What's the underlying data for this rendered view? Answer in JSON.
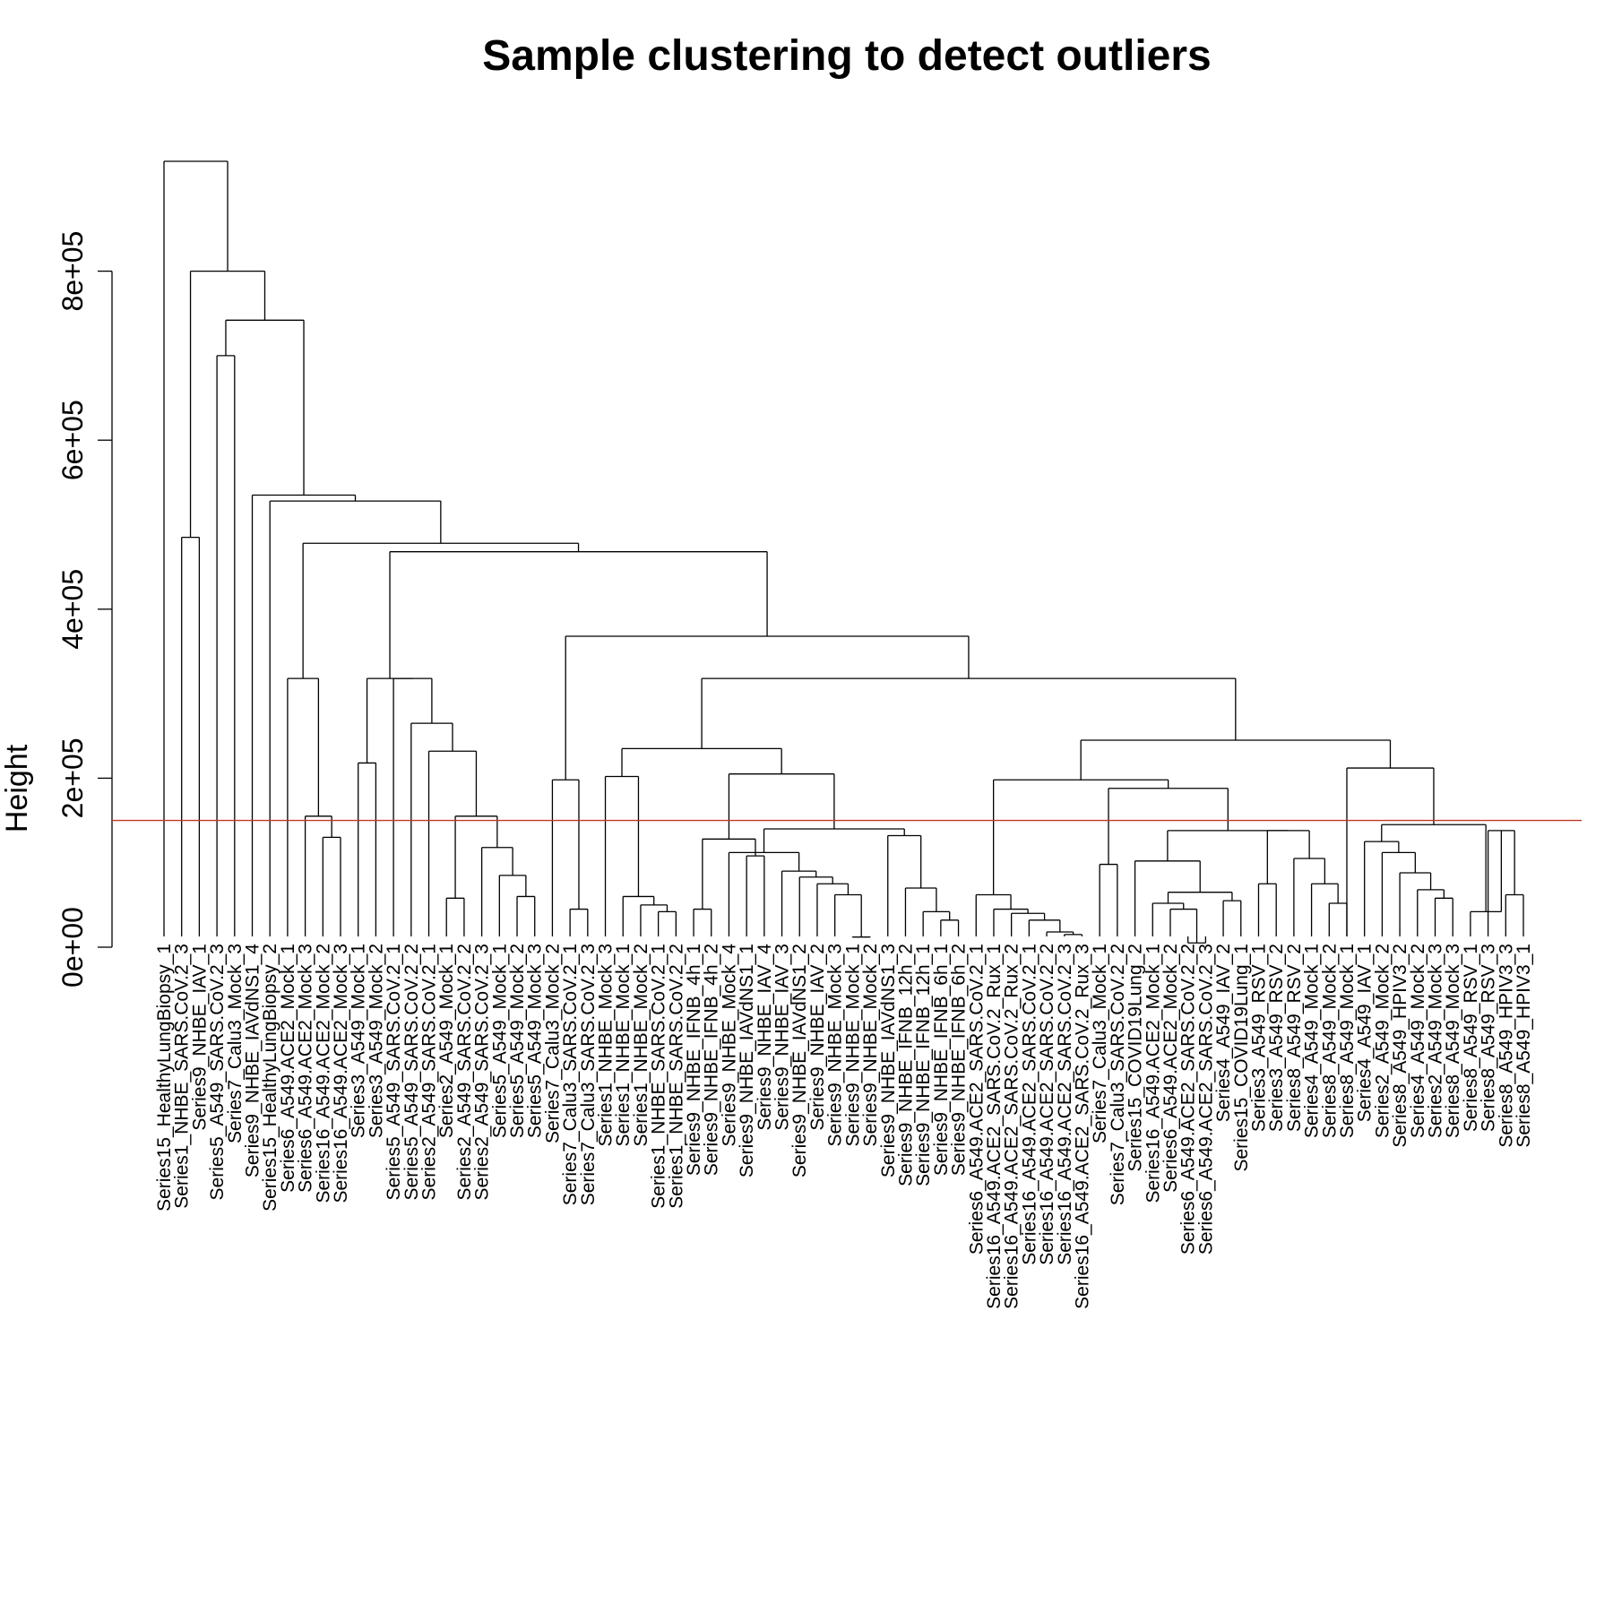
{
  "chart_data": {
    "type": "dendrogram",
    "title": "Sample clustering to detect outliers",
    "ylabel": "Height",
    "xlabel": "",
    "y_ticks": [
      "0e+00",
      "2e+05",
      "4e+05",
      "6e+05",
      "8e+05"
    ],
    "y_tick_values": [
      0,
      200000,
      400000,
      600000,
      800000
    ],
    "ylim": [
      0,
      930000
    ],
    "cut_height": 150000,
    "cut_color": "#c0392b",
    "leaves": [
      "Series15_HealthyLungBiopsy_1",
      "Series1_NHBE_SARS.CoV.2_3",
      "Series9_NHBE_IAV_1",
      "Series5_A549_SARS.CoV.2_3",
      "Series7_Calu3_Mock_3",
      "Series9_NHBE_IAVdNS1_4",
      "Series15_HealthyLungBiopsy_2",
      "Series6_A549.ACE2_Mock_1",
      "Series6_A549.ACE2_Mock_3",
      "Series16_A549.ACE2_Mock_2",
      "Series16_A549.ACE2_Mock_3",
      "Series3_A549_Mock_1",
      "Series3_A549_Mock_2",
      "Series5_A549_SARS.CoV.2_1",
      "Series5_A549_SARS.CoV.2_2",
      "Series2_A549_SARS.CoV.2_1",
      "Series2_A549_Mock_1",
      "Series2_A549_SARS.CoV.2_2",
      "Series2_A549_SARS.CoV.2_3",
      "Series5_A549_Mock_1",
      "Series5_A549_Mock_2",
      "Series5_A549_Mock_3",
      "Series7_Calu3_Mock_2",
      "Series7_Calu3_SARS.CoV.2_1",
      "Series7_Calu3_SARS.CoV.2_3",
      "Series1_NHBE_Mock_3",
      "Series1_NHBE_Mock_1",
      "Series1_NHBE_Mock_2",
      "Series1_NHBE_SARS.CoV.2_1",
      "Series1_NHBE_SARS.CoV.2_2",
      "Series9_NHBE_IFNB_4h_1",
      "Series9_NHBE_IFNB_4h_2",
      "Series9_NHBE_Mock_4",
      "Series9_NHBE_IAVdNS1_1",
      "Series9_NHBE_IAV_4",
      "Series9_NHBE_IAV_3",
      "Series9_NHBE_IAVdNS1_2",
      "Series9_NHBE_IAV_2",
      "Series9_NHBE_Mock_3",
      "Series9_NHBE_Mock_1",
      "Series9_NHBE_Mock_2",
      "Series9_NHBE_IAVdNS1_3",
      "Series9_NHBE_IFNB_12h_2",
      "Series9_NHBE_IFNB_12h_1",
      "Series9_NHBE_IFNB_6h_1",
      "Series9_NHBE_IFNB_6h_2",
      "Series6_A549.ACE2_SARS.CoV.2_1",
      "Series16_A549.ACE2_SARS.CoV.2_Rux_1",
      "Series16_A549.ACE2_SARS.CoV.2_Rux_2",
      "Series16_A549.ACE2_SARS.CoV.2_1",
      "Series16_A549.ACE2_SARS.CoV.2_2",
      "Series16_A549.ACE2_SARS.CoV.2_3",
      "Series16_A549.ACE2_SARS.CoV.2_Rux_3",
      "Series7_Calu3_Mock_1",
      "Series7_Calu3_SARS.CoV.2_2",
      "Series15_COVID19Lung_2",
      "Series16_A549.ACE2_Mock_1",
      "Series6_A549.ACE2_Mock_2",
      "Series6_A549.ACE2_SARS.CoV.2_2",
      "Series6_A549.ACE2_SARS.CoV.2_3",
      "Series4_A549_IAV_2",
      "Series15_COVID19Lung_1",
      "Series3_A549_RSV_1",
      "Series3_A549_RSV_2",
      "Series8_A549_RSV_2",
      "Series4_A549_Mock_1",
      "Series8_A549_Mock_2",
      "Series8_A549_Mock_1",
      "Series4_A549_IAV_1",
      "Series2_A549_Mock_2",
      "Series8_A549_HPIV3_2",
      "Series4_A549_Mock_2",
      "Series2_A549_Mock_3",
      "Series8_A549_Mock_3",
      "Series8_A549_RSV_1",
      "Series8_A549_RSV_3",
      "Series8_A549_HPIV3_3",
      "Series8_A549_HPIV3_1"
    ],
    "merges": [
      {
        "left": 1,
        "right": 2,
        "height": 485000
      },
      {
        "left": 3,
        "right": 4,
        "height": 700000
      },
      {
        "left": 9,
        "right": 10,
        "height": 130000
      },
      {
        "left": 8,
        "right": "m3",
        "height": 155000
      },
      {
        "left": 7,
        "right": "m4",
        "height": 318000
      },
      {
        "left": 11,
        "right": 12,
        "height": 218000
      },
      {
        "left": 16,
        "right": 17,
        "height": 58000
      },
      {
        "left": 20,
        "right": 21,
        "height": 60000
      },
      {
        "left": 19,
        "right": "m8",
        "height": 85000
      },
      {
        "left": 18,
        "right": "m9",
        "height": 118000
      },
      {
        "left": "m7",
        "right": "m10",
        "height": 155000
      },
      {
        "left": 15,
        "right": "m11",
        "height": 232000
      },
      {
        "left": 14,
        "right": "m12",
        "height": 265000
      },
      {
        "left": 13,
        "right": "m13",
        "height": 318000
      },
      {
        "left": "m6",
        "right": "m14",
        "height": 318000
      },
      {
        "left": 23,
        "right": 24,
        "height": 45000
      },
      {
        "left": 22,
        "right": "m16",
        "height": 198000
      },
      {
        "left": 28,
        "right": 29,
        "height": 42000
      },
      {
        "left": 27,
        "right": "m18",
        "height": 50000
      },
      {
        "left": 26,
        "right": "m19",
        "height": 60000
      },
      {
        "left": 25,
        "right": "m20",
        "height": 202000
      },
      {
        "left": 30,
        "right": 31,
        "height": 45000
      },
      {
        "left": 33,
        "right": 34,
        "height": 108000
      },
      {
        "left": "m22",
        "right": "m23",
        "height": 128000
      },
      {
        "left": 39,
        "right": 40,
        "height": 12000
      },
      {
        "left": 38,
        "right": "m25",
        "height": 62000
      },
      {
        "left": 37,
        "right": "m26",
        "height": 75000
      },
      {
        "left": 36,
        "right": "m27",
        "height": 83000
      },
      {
        "left": 35,
        "right": "m28",
        "height": 90000
      },
      {
        "left": 32,
        "right": "m29",
        "height": 112000
      },
      {
        "left": 44,
        "right": 45,
        "height": 32000
      },
      {
        "left": 43,
        "right": "m31",
        "height": 42000
      },
      {
        "left": 42,
        "right": "m32",
        "height": 70000
      },
      {
        "left": 41,
        "right": "m33",
        "height": 132000
      },
      {
        "left": "m30",
        "right": "m34",
        "height": 140000
      },
      {
        "left": "m24",
        "right": "m35",
        "height": 205000
      },
      {
        "left": "m21",
        "right": "m36",
        "height": 235000
      },
      {
        "left": 51,
        "right": 52,
        "height": 15000
      },
      {
        "left": 50,
        "right": "m38",
        "height": 18000
      },
      {
        "left": 49,
        "right": "m39",
        "height": 32000
      },
      {
        "left": 48,
        "right": "m40",
        "height": 40000
      },
      {
        "left": 47,
        "right": "m41",
        "height": 45000
      },
      {
        "left": 46,
        "right": "m42",
        "height": 62000
      },
      {
        "left": 53,
        "right": 54,
        "height": 98000
      },
      {
        "left": 58,
        "right": 59,
        "height": 5000
      },
      {
        "left": 57,
        "right": "m45",
        "height": 45000
      },
      {
        "left": 56,
        "right": "m46",
        "height": 52000
      },
      {
        "left": 60,
        "right": 61,
        "height": 55000
      },
      {
        "left": "m47",
        "right": "m48",
        "height": 65000
      },
      {
        "left": 55,
        "right": "m49",
        "height": 102000
      },
      {
        "left": 62,
        "right": 63,
        "height": 75000
      },
      {
        "left": 66,
        "right": 67,
        "height": 52000
      },
      {
        "left": 65,
        "right": "m52",
        "height": 75000
      },
      {
        "left": 64,
        "right": "m53",
        "height": 105000
      },
      {
        "left": "m51",
        "right": "m54",
        "height": 138000
      },
      {
        "left": "m50",
        "right": "m55",
        "height": 138000
      },
      {
        "left": "m44",
        "right": "m56",
        "height": 188000
      },
      {
        "left": "m43",
        "right": "m57",
        "height": 198000
      },
      {
        "left": 72,
        "right": 73,
        "height": 58000
      },
      {
        "left": 71,
        "right": "m59",
        "height": 68000
      },
      {
        "left": 70,
        "right": "m60",
        "height": 88000
      },
      {
        "left": 69,
        "right": "m61",
        "height": 112000
      },
      {
        "left": 68,
        "right": "m62",
        "height": 125000
      },
      {
        "left": 76,
        "right": 77,
        "height": 62000
      },
      {
        "left": 75,
        "right": "m64",
        "height": 138000
      },
      {
        "left": 74,
        "right": "m65",
        "height": 42000
      },
      {
        "left": "m63",
        "right": "m66",
        "height": 145000
      },
      {
        "left": 67,
        "right": "m67",
        "height": 212000
      },
      {
        "left": "m58",
        "right": "m68",
        "height": 245000
      },
      {
        "left": "m37",
        "right": "m69",
        "height": 318000
      },
      {
        "left": "m17",
        "right": "m70",
        "height": 368000
      },
      {
        "left": "m15",
        "right": "m71",
        "height": 468000
      },
      {
        "left": "m5",
        "right": "m72",
        "height": 478000
      },
      {
        "left": 6,
        "right": "m73",
        "height": 528000
      },
      {
        "left": 5,
        "right": "m74",
        "height": 535000
      },
      {
        "left": "m2",
        "right": "m75",
        "height": 742000
      },
      {
        "left": "m1",
        "right": "m76",
        "height": 800000
      },
      {
        "left": 0,
        "right": "m77",
        "height": 930000
      }
    ]
  }
}
